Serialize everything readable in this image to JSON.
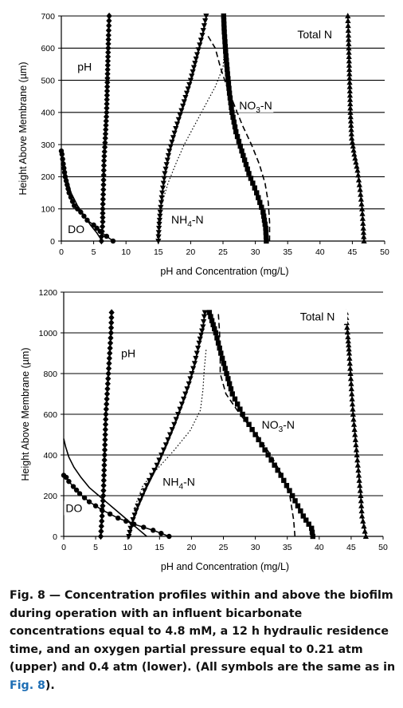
{
  "chart_data": [
    {
      "type": "line",
      "name": "upper",
      "xlabel": "pH and Concentration (mg/L)",
      "ylabel": "Height Above Membrane (µm)",
      "xlim": [
        0,
        50
      ],
      "ylim": [
        0,
        700
      ],
      "xticks": [
        0,
        5,
        10,
        15,
        20,
        25,
        30,
        35,
        40,
        45,
        50
      ],
      "yticks": [
        0,
        100,
        200,
        300,
        400,
        500,
        600,
        700
      ],
      "grid": "horizontal",
      "annotations": [
        {
          "text": "pH",
          "x": 2.5,
          "y": 530
        },
        {
          "text": "Total N",
          "x": 36.5,
          "y": 630
        },
        {
          "text": "NO₃-N",
          "x": 27.5,
          "y": 410
        },
        {
          "text": "NH₄-N",
          "x": 17,
          "y": 55
        },
        {
          "text": "DO",
          "x": 1,
          "y": 25
        }
      ],
      "series": [
        {
          "key": "pH",
          "marker": "diamond",
          "x": [
            6.2,
            6.3,
            6.4,
            6.4,
            6.5,
            6.6,
            6.8,
            7.0,
            7.1,
            7.2,
            7.3,
            7.4
          ],
          "y": [
            0,
            30,
            60,
            100,
            160,
            250,
            320,
            400,
            480,
            560,
            640,
            700
          ]
        },
        {
          "key": "Total N",
          "marker": "triangle",
          "x": [
            46.8,
            46.7,
            46.5,
            46.2,
            45.8,
            45.3,
            44.9,
            44.7,
            44.6,
            44.5,
            44.4,
            44.3
          ],
          "y": [
            0,
            40,
            100,
            160,
            220,
            270,
            320,
            400,
            480,
            560,
            640,
            700
          ]
        },
        {
          "key": "NO3-N",
          "marker": "square",
          "x": [
            31.7,
            31.6,
            31.2,
            30.2,
            29.0,
            27.9,
            27.0,
            26.4,
            26.0,
            25.7,
            25.4,
            25.2,
            25.1
          ],
          "y": [
            0,
            40,
            90,
            150,
            210,
            280,
            340,
            400,
            460,
            520,
            590,
            650,
            700
          ]
        },
        {
          "key": "NH4-N",
          "marker": "triangle-down",
          "x": [
            15.0,
            15.1,
            15.3,
            15.6,
            16.0,
            16.7,
            17.7,
            18.8,
            20.0,
            21.0,
            21.8,
            22.4
          ],
          "y": [
            0,
            40,
            90,
            150,
            210,
            280,
            350,
            420,
            500,
            580,
            640,
            700
          ]
        },
        {
          "key": "DO",
          "marker": "circle",
          "x": [
            8.0,
            7.0,
            6.0,
            5.0,
            4.0,
            3.0,
            2.0,
            1.2,
            0.6,
            0.3,
            0.1,
            0.0
          ],
          "y": [
            0,
            15,
            30,
            50,
            65,
            90,
            110,
            150,
            200,
            240,
            270,
            280
          ]
        },
        {
          "key": "NO3-N model",
          "style": "dashed",
          "x": [
            32.2,
            32.2,
            32.0,
            31.5,
            30.6,
            29.4,
            28.0,
            26.8,
            25.6,
            24.6,
            23.8,
            22.6
          ],
          "y": [
            0,
            60,
            120,
            180,
            240,
            300,
            360,
            420,
            480,
            540,
            600,
            640
          ]
        },
        {
          "key": "NH4-N model",
          "style": "dotted",
          "x": [
            14.8,
            15.0,
            15.6,
            16.5,
            17.7,
            19.0,
            20.6,
            22.2,
            23.8,
            25.0,
            25.2
          ],
          "y": [
            0,
            60,
            120,
            180,
            240,
            300,
            360,
            420,
            480,
            540,
            590
          ]
        },
        {
          "key": "DO model",
          "style": "solid",
          "x": [
            6.3,
            5.5,
            4.5,
            3.5,
            2.5,
            1.5,
            0.8,
            0.3,
            0.0
          ],
          "y": [
            0,
            25,
            50,
            80,
            110,
            150,
            200,
            250,
            280
          ]
        }
      ]
    },
    {
      "type": "line",
      "name": "lower",
      "xlabel": "pH and Concentration (mg/L)",
      "ylabel": "Height Above Membrane (µm)",
      "xlim": [
        0,
        50
      ],
      "ylim": [
        0,
        1200
      ],
      "xticks": [
        0,
        5,
        10,
        15,
        20,
        25,
        30,
        35,
        40,
        45,
        50
      ],
      "yticks": [
        0,
        200,
        400,
        600,
        800,
        1000,
        1200
      ],
      "grid": "horizontal",
      "annotations": [
        {
          "text": "pH",
          "x": 9,
          "y": 880
        },
        {
          "text": "Total N",
          "x": 37,
          "y": 1060
        },
        {
          "text": "NO₃-N",
          "x": 31,
          "y": 530
        },
        {
          "text": "NH₄-N",
          "x": 15.5,
          "y": 250
        },
        {
          "text": "DO",
          "x": 0.3,
          "y": 120
        }
      ],
      "series": [
        {
          "key": "pH",
          "marker": "diamond",
          "x": [
            5.8,
            5.9,
            6.0,
            6.2,
            6.3,
            6.4,
            6.5,
            6.6,
            6.8,
            7.0,
            7.2,
            7.4,
            7.5
          ],
          "y": [
            0,
            50,
            100,
            200,
            300,
            400,
            500,
            600,
            700,
            800,
            900,
            1000,
            1100
          ]
        },
        {
          "key": "Total N",
          "marker": "triangle",
          "x": [
            47.3,
            47.0,
            46.7,
            46.5,
            46.2,
            45.9,
            45.6,
            45.3,
            45.1,
            44.9,
            44.7,
            44.5,
            44.3,
            44.2
          ],
          "y": [
            0,
            50,
            100,
            200,
            300,
            400,
            500,
            600,
            700,
            800,
            900,
            980,
            1050,
            1100
          ]
        },
        {
          "key": "NO3-N",
          "marker": "square",
          "x": [
            39.0,
            38.8,
            37.5,
            35.8,
            34.0,
            32.0,
            30.0,
            28.0,
            26.4,
            25.5,
            24.6,
            23.8,
            23.0,
            22.8
          ],
          "y": [
            0,
            40,
            100,
            200,
            300,
            400,
            500,
            600,
            700,
            800,
            900,
            1000,
            1080,
            1100
          ]
        },
        {
          "key": "NH4-N",
          "marker": "triangle-down",
          "x": [
            10.2,
            10.6,
            11.6,
            13.0,
            14.6,
            16.0,
            17.3,
            18.5,
            19.6,
            20.5,
            21.2,
            21.8,
            22.0,
            22.1
          ],
          "y": [
            0,
            60,
            150,
            250,
            350,
            450,
            550,
            650,
            750,
            850,
            950,
            1030,
            1080,
            1100
          ]
        },
        {
          "key": "DO",
          "marker": "circle",
          "x": [
            16.5,
            14.0,
            11.0,
            8.5,
            6.0,
            4.0,
            2.5,
            1.5,
            0.8,
            0.4,
            0.0
          ],
          "y": [
            0,
            30,
            60,
            90,
            130,
            170,
            210,
            245,
            270,
            290,
            300
          ]
        },
        {
          "key": "NO3-N model",
          "style": "dashed",
          "x": [
            36.2,
            36.0,
            35.4,
            34.2,
            32.4,
            30.2,
            27.6,
            25.4,
            24.5,
            24.5,
            24.4,
            24.2
          ],
          "y": [
            0,
            80,
            200,
            300,
            400,
            500,
            600,
            700,
            800,
            900,
            1000,
            1100
          ]
        },
        {
          "key": "NH4-N model",
          "style": "dotted",
          "x": [
            10.4,
            10.7,
            11.2,
            12.4,
            14.6,
            17.2,
            19.8,
            21.4,
            21.8,
            22.0,
            22.3
          ],
          "y": [
            0,
            50,
            150,
            250,
            330,
            420,
            520,
            620,
            720,
            820,
            920
          ]
        },
        {
          "key": "DO model",
          "style": "solid",
          "x": [
            13.0,
            11.5,
            10.0,
            8.5,
            7.0,
            5.5,
            4.0,
            2.7,
            1.6,
            0.8,
            0.3,
            0.0
          ],
          "y": [
            0,
            40,
            80,
            120,
            160,
            200,
            240,
            290,
            340,
            390,
            440,
            480
          ]
        }
      ]
    }
  ],
  "caption": {
    "text": "Fig. 8 — Concentration profiles within and above the biofilm during operation with an influent bicarbonate concentrations equal to 4.8 mM, a 12 h hydraulic residence time, and an oxygen partial pressure equal to 0.21 atm (upper) and 0.4 atm (lower). (All symbols are the same as in ",
    "ref": "Fig. 8",
    "end": ")."
  }
}
